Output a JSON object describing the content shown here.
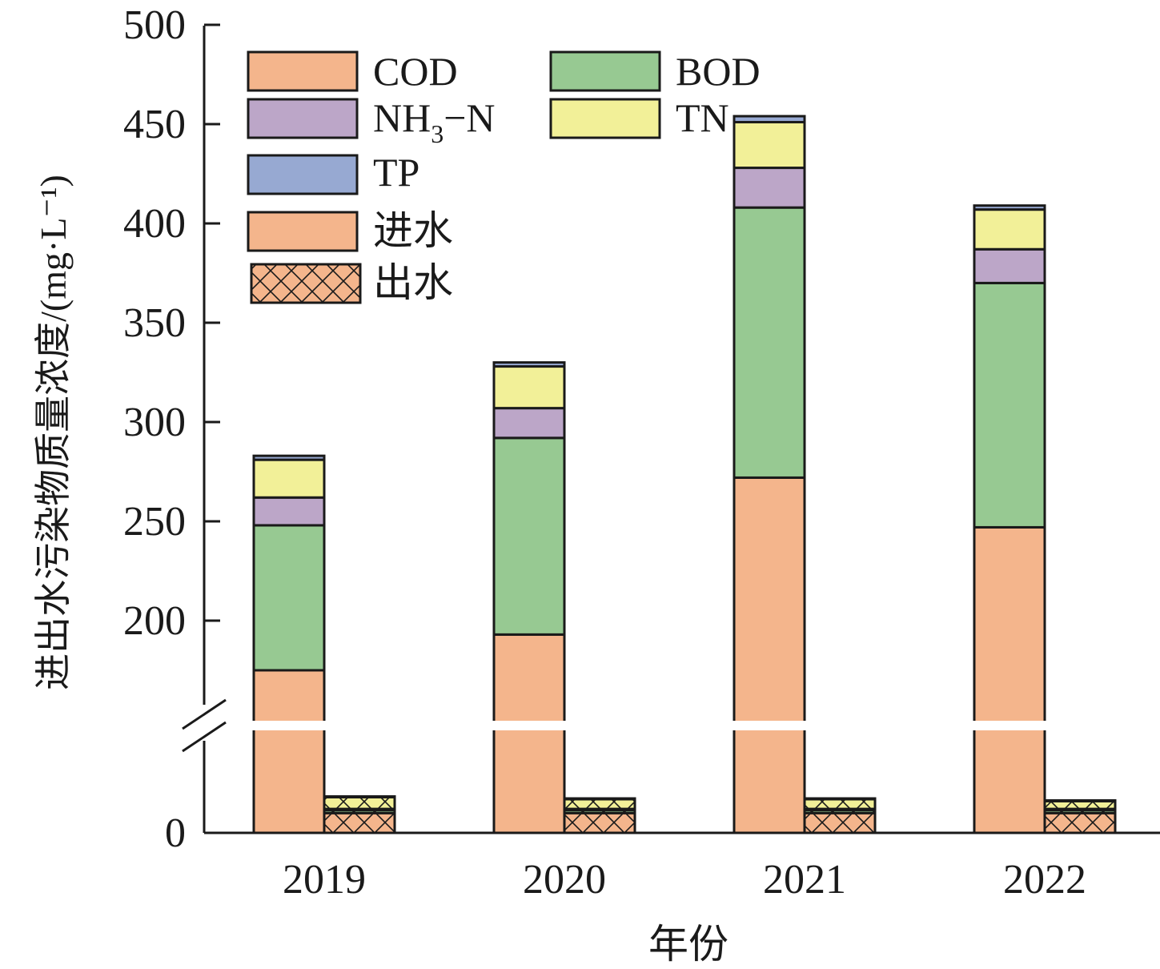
{
  "chart_data": {
    "type": "bar",
    "stacked": true,
    "categories": [
      "2019",
      "2020",
      "2021",
      "2022"
    ],
    "xlabel": "年份",
    "ylabel": "进出水污染物质量浓度/(mg·L⁻¹)",
    "ylim": [
      0,
      500
    ],
    "axis_break": true,
    "y_ticks": [
      "0",
      "200",
      "250",
      "300",
      "350",
      "400",
      "450",
      "500"
    ],
    "legend_position": "top-left",
    "series_order": [
      "COD",
      "BOD",
      "NH3-N",
      "TN",
      "TP"
    ],
    "groups": [
      {
        "name": "进水",
        "pattern": "solid",
        "series": [
          {
            "name": "COD",
            "values": [
              175,
              193,
              272,
              247
            ]
          },
          {
            "name": "BOD",
            "values": [
              73,
              99,
              136,
              123
            ]
          },
          {
            "name": "NH3-N",
            "values": [
              14,
              15,
              20,
              17
            ]
          },
          {
            "name": "TN",
            "values": [
              19,
              21,
              23,
              20
            ]
          },
          {
            "name": "TP",
            "values": [
              2,
              2,
              3,
              2
            ]
          }
        ]
      },
      {
        "name": "出水",
        "pattern": "crosshatch",
        "series": [
          {
            "name": "COD",
            "values": [
              10,
              10,
              10,
              10
            ]
          },
          {
            "name": "BOD",
            "values": [
              1.5,
              1.5,
              1.5,
              1.5
            ]
          },
          {
            "name": "NH3-N",
            "values": [
              0.5,
              0.5,
              0.5,
              0.5
            ]
          },
          {
            "name": "TN",
            "values": [
              6,
              5,
              5,
              4
            ]
          },
          {
            "name": "TP",
            "values": [
              0.3,
              0.3,
              0.3,
              0.3
            ]
          }
        ]
      }
    ],
    "colors": {
      "COD": "#F4B58C",
      "BOD": "#97C992",
      "NH3-N": "#BCA6C8",
      "TN": "#F2F098",
      "TP": "#97A9D2"
    }
  },
  "legend": {
    "COD": "COD",
    "BOD": "BOD",
    "NH3": "NH",
    "NH3_sub": "3",
    "NH3_suffix": "−N",
    "TN": "TN",
    "TP": "TP",
    "inflow": "进水",
    "outflow": "出水"
  },
  "labels": {
    "y_axis": "进出水污染物质量浓度/(mg·L⁻¹)",
    "x_axis": "年份"
  }
}
